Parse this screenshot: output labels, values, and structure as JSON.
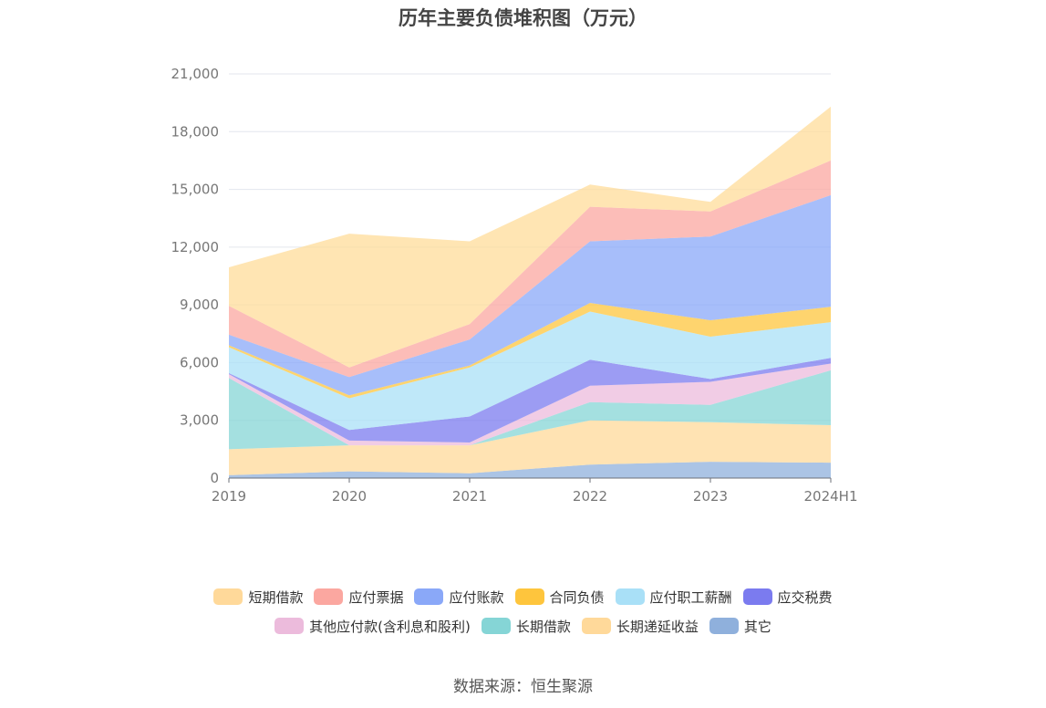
{
  "chart_data": {
    "type": "area",
    "stacked": true,
    "title": "历年主要负债堆积图（万元）",
    "categories": [
      "2019",
      "2020",
      "2021",
      "2022",
      "2023",
      "2024H1"
    ],
    "ylim": [
      0,
      21000
    ],
    "yticks": [
      "0",
      "3,000",
      "6,000",
      "9,000",
      "12,000",
      "15,000",
      "18,000",
      "21,000"
    ],
    "grid": true,
    "legend_position": "bottom",
    "series": [
      {
        "name": "其它",
        "color": "#8fb0dc",
        "values": [
          150,
          350,
          250,
          700,
          850,
          800
        ]
      },
      {
        "name": "长期递延收益",
        "color": "#ffd99a",
        "values": [
          1350,
          1350,
          1450,
          2300,
          2050,
          1950
        ]
      },
      {
        "name": "长期借款",
        "color": "#85d5d6",
        "values": [
          3700,
          0,
          0,
          950,
          900,
          2850
        ]
      },
      {
        "name": "其他应付款(含利息和股利)",
        "color": "#ecbbdc",
        "values": [
          200,
          250,
          150,
          850,
          1200,
          350
        ]
      },
      {
        "name": "应交税费",
        "color": "#7b7bef",
        "values": [
          50,
          550,
          1350,
          1350,
          150,
          300
        ]
      },
      {
        "name": "应付职工薪酬",
        "color": "#a9e0f7",
        "values": [
          1350,
          1650,
          2550,
          2500,
          2200,
          1850
        ]
      },
      {
        "name": "合同负债",
        "color": "#fec53d",
        "values": [
          100,
          150,
          100,
          450,
          850,
          800
        ]
      },
      {
        "name": "应付账款",
        "color": "#8aa8f8",
        "values": [
          550,
          950,
          1350,
          3200,
          4350,
          5800
        ]
      },
      {
        "name": "应付票据",
        "color": "#fba7a0",
        "values": [
          1500,
          500,
          800,
          1800,
          1300,
          1800
        ]
      },
      {
        "name": "短期借款",
        "color": "#ffdc9a",
        "values": [
          2000,
          6950,
          4300,
          1150,
          500,
          2800
        ]
      }
    ]
  },
  "legend": {
    "rows": [
      [
        {
          "label": "短期借款",
          "color": "#ffd99a"
        },
        {
          "label": "应付票据",
          "color": "#fba7a0"
        },
        {
          "label": "应付账款",
          "color": "#8aa8f8"
        },
        {
          "label": "合同负债",
          "color": "#fec53d"
        },
        {
          "label": "应付职工薪酬",
          "color": "#a9e0f7"
        },
        {
          "label": "应交税费",
          "color": "#7b7bef"
        }
      ],
      [
        {
          "label": "其他应付款(含利息和股利)",
          "color": "#ecbbdc"
        },
        {
          "label": "长期借款",
          "color": "#85d5d6"
        },
        {
          "label": "长期递延收益",
          "color": "#ffd99a"
        },
        {
          "label": "其它",
          "color": "#8fb0dc"
        }
      ]
    ]
  },
  "footer": {
    "source": "数据来源：恒生聚源"
  }
}
